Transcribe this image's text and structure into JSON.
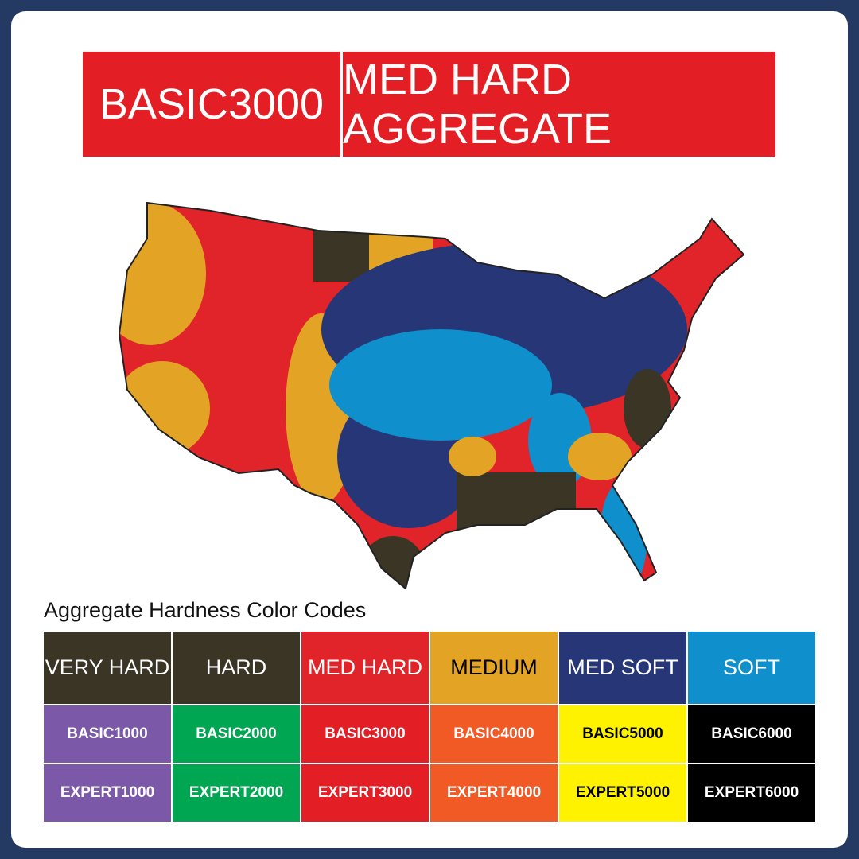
{
  "header": {
    "product": "BASIC3000",
    "hardness": "MED HARD AGGREGATE"
  },
  "legend": {
    "title": "Aggregate Hardness Color Codes",
    "columns": [
      {
        "label": "VERY HARD",
        "color": "#3b3526",
        "text_color": "#ffffff"
      },
      {
        "label": "HARD",
        "color": "#3b3526",
        "text_color": "#ffffff"
      },
      {
        "label": "MED HARD",
        "color": "#e0242a",
        "text_color": "#ffffff"
      },
      {
        "label": "MEDIUM",
        "color": "#e3a425",
        "text_color": "#000000"
      },
      {
        "label": "MED SOFT",
        "color": "#263677",
        "text_color": "#ffffff"
      },
      {
        "label": "SOFT",
        "color": "#0f8fcb",
        "text_color": "#ffffff"
      }
    ],
    "codes": {
      "colors": [
        "#7b59a8",
        "#00a651",
        "#e31e24",
        "#f15a24",
        "#fff200",
        "#000000"
      ],
      "text_colors": [
        "#ffffff",
        "#ffffff",
        "#ffffff",
        "#ffffff",
        "#000000",
        "#ffffff"
      ],
      "rows": [
        [
          "BASIC1000",
          "BASIC2000",
          "BASIC3000",
          "BASIC4000",
          "BASIC5000",
          "BASIC6000"
        ],
        [
          "EXPERT1000",
          "EXPERT2000",
          "EXPERT3000",
          "EXPERT4000",
          "EXPERT5000",
          "EXPERT6000"
        ]
      ]
    }
  }
}
